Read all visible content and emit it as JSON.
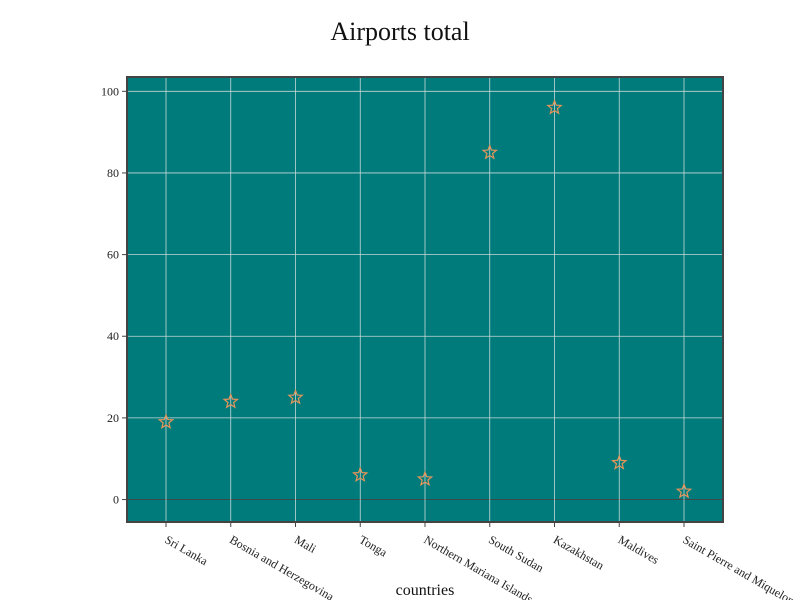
{
  "chart_data": {
    "type": "scatter",
    "title": "Airports total",
    "xlabel": "countries",
    "ylabel": "",
    "categories": [
      "Sri Lanka",
      "Bosnia and Herzegovina",
      "Mali",
      "Tonga",
      "Northern Mariana Islands",
      "South Sudan",
      "Kazakhstan",
      "Maldives",
      "Saint Pierre and Miquelon"
    ],
    "values": [
      19,
      24,
      25,
      6,
      5,
      85,
      96,
      9,
      2
    ],
    "ylim": [
      -5.5,
      103.5
    ],
    "yticks": [
      0,
      20,
      40,
      60,
      80,
      100
    ],
    "grid": true,
    "marker": "star",
    "colors": {
      "plot_bg": "#007b7b",
      "marker_stroke": "#e8955a",
      "grid": "#c8d8d8",
      "zero_line": "#3a4a4a",
      "frame": "#444444"
    }
  }
}
